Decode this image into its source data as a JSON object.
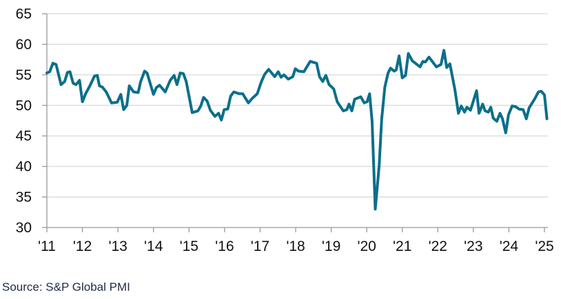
{
  "chart_data": {
    "type": "line",
    "title": "",
    "xlabel": "",
    "ylabel": "",
    "ylim": [
      30,
      65
    ],
    "yticks": [
      30,
      35,
      40,
      45,
      50,
      55,
      60,
      65
    ],
    "xlim": [
      2011,
      2025.1
    ],
    "xticks": [
      2011,
      2012,
      2013,
      2014,
      2015,
      2016,
      2017,
      2018,
      2019,
      2020,
      2021,
      2022,
      2023,
      2024,
      2025
    ],
    "xtick_labels": [
      "'11",
      "'12",
      "'13",
      "'14",
      "'15",
      "'16",
      "'17",
      "'18",
      "'19",
      "'20",
      "'21",
      "'22",
      "'23",
      "'24",
      "'25"
    ],
    "grid": "horizontal",
    "line_color": "#0b6f8a",
    "series": [
      {
        "x": [
          2011.0,
          2011.08,
          2011.17,
          2011.26,
          2011.4,
          2011.5,
          2011.58,
          2011.65,
          2011.74,
          2011.82,
          2011.92,
          2012.0,
          2012.09,
          2012.21,
          2012.34,
          2012.42,
          2012.48,
          2012.56,
          2012.67,
          2012.82,
          2012.98,
          2013.08,
          2013.16,
          2013.25,
          2013.32,
          2013.44,
          2013.57,
          2013.64,
          2013.75,
          2013.82,
          2014.0,
          2014.08,
          2014.17,
          2014.33,
          2014.47,
          2014.58,
          2014.66,
          2014.75,
          2014.84,
          2014.92,
          2015.09,
          2015.25,
          2015.33,
          2015.41,
          2015.51,
          2015.6,
          2015.73,
          2015.83,
          2015.91,
          2015.99,
          2016.09,
          2016.17,
          2016.26,
          2016.41,
          2016.51,
          2016.67,
          2016.77,
          2016.92,
          2017.03,
          2017.13,
          2017.24,
          2017.41,
          2017.51,
          2017.59,
          2017.67,
          2017.79,
          2017.92,
          2017.99,
          2018.08,
          2018.23,
          2018.41,
          2018.59,
          2018.67,
          2018.76,
          2018.85,
          2018.94,
          2019.07,
          2019.17,
          2019.34,
          2019.44,
          2019.5,
          2019.58,
          2019.66,
          2019.83,
          2019.93,
          2020.01,
          2020.08,
          2020.15,
          2020.24,
          2020.35,
          2020.42,
          2020.51,
          2020.6,
          2020.67,
          2020.77,
          2020.83,
          2020.91,
          2021.0,
          2021.09,
          2021.17,
          2021.28,
          2021.5,
          2021.58,
          2021.65,
          2021.75,
          2021.96,
          2022.09,
          2022.17,
          2022.25,
          2022.34,
          2022.48,
          2022.58,
          2022.66,
          2022.75,
          2022.82,
          2022.92,
          2023.09,
          2023.16,
          2023.26,
          2023.33,
          2023.42,
          2023.49,
          2023.56,
          2023.66,
          2023.75,
          2023.82,
          2023.91,
          2023.99,
          2024.09,
          2024.19,
          2024.28,
          2024.4,
          2024.49,
          2024.57,
          2024.73,
          2024.83,
          2024.91,
          2025.0,
          2025.07
        ],
        "y": [
          55.3,
          55.5,
          56.9,
          56.7,
          53.4,
          53.9,
          55.4,
          55.5,
          53.6,
          53.4,
          54.1,
          50.6,
          51.9,
          53.2,
          54.8,
          54.9,
          53.2,
          53.0,
          52.2,
          50.4,
          50.5,
          51.8,
          49.3,
          50.0,
          53.2,
          52.2,
          52.1,
          53.9,
          55.6,
          55.3,
          51.8,
          52.9,
          53.3,
          52.2,
          54.1,
          54.9,
          53.4,
          55.3,
          55.2,
          53.9,
          48.8,
          49.1,
          49.9,
          51.3,
          50.7,
          49.2,
          48.2,
          48.7,
          47.6,
          49.3,
          49.4,
          51.5,
          52.2,
          51.9,
          51.9,
          50.4,
          51.1,
          51.9,
          53.8,
          55.1,
          55.9,
          54.7,
          55.5,
          54.6,
          55.0,
          54.3,
          54.7,
          56.0,
          55.6,
          55.5,
          57.2,
          56.9,
          54.7,
          53.9,
          54.9,
          53.4,
          52.7,
          50.6,
          49.1,
          49.3,
          50.2,
          49.1,
          51.0,
          51.4,
          50.4,
          50.6,
          51.9,
          47.4,
          33.0,
          40.2,
          47.7,
          53.0,
          55.3,
          56.1,
          55.6,
          55.8,
          58.1,
          54.5,
          54.9,
          58.5,
          57.3,
          56.3,
          57.2,
          57.1,
          57.9,
          56.3,
          56.7,
          59.0,
          56.2,
          56.8,
          52.6,
          48.7,
          49.9,
          48.9,
          49.7,
          49.2,
          52.4,
          48.7,
          50.2,
          49.1,
          48.9,
          49.7,
          47.9,
          47.4,
          48.7,
          47.8,
          45.5,
          48.5,
          49.9,
          49.8,
          49.4,
          49.3,
          47.8,
          49.6,
          51.1,
          52.2,
          52.3,
          51.7,
          47.8
        ]
      }
    ]
  },
  "source": "Source: S&P Global PMI"
}
